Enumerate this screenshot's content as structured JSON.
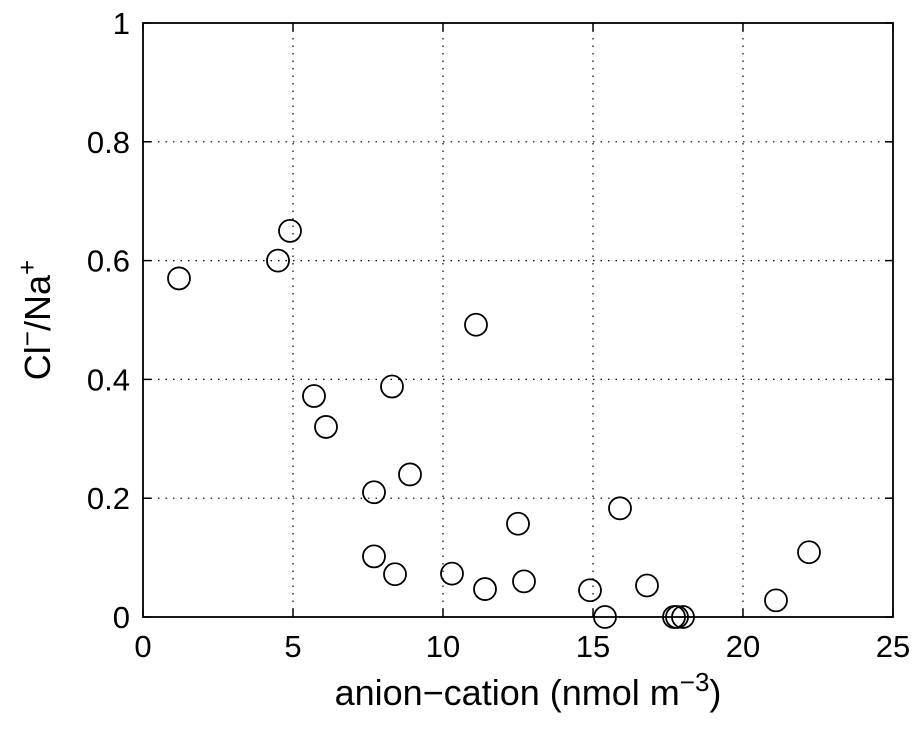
{
  "chart_data": {
    "type": "scatter",
    "title": "",
    "xlabel": "anion−cation (nmol m",
    "xlabel_sup": "−3",
    "xlabel_end": ")",
    "ylabel_main": "Cl",
    "ylabel_sup1": "−",
    "ylabel_mid": "/Na",
    "ylabel_sup2": "+",
    "xlim": [
      0,
      25
    ],
    "ylim": [
      0,
      1
    ],
    "xticks": [
      0,
      5,
      10,
      15,
      20,
      25
    ],
    "xtick_labels": [
      "0",
      "5",
      "10",
      "15",
      "20",
      "25"
    ],
    "yticks": [
      0,
      0.2,
      0.4,
      0.6,
      0.8,
      1
    ],
    "ytick_labels": [
      "0",
      "0.2",
      "0.4",
      "0.6",
      "0.8",
      "1"
    ],
    "grid": true,
    "marker": "open-circle",
    "color": "#000000",
    "series": [
      {
        "x": [
          1.2,
          4.5,
          4.9,
          5.7,
          6.1,
          7.7,
          7.7,
          8.3,
          8.4,
          8.9,
          10.3,
          11.1,
          11.4,
          12.5,
          12.7,
          14.9,
          15.4,
          15.9,
          16.8,
          17.7,
          17.8,
          18.0,
          21.1,
          22.2
        ],
        "y": [
          0.57,
          0.6,
          0.65,
          0.372,
          0.32,
          0.21,
          0.102,
          0.388,
          0.072,
          0.24,
          0.073,
          0.492,
          0.047,
          0.157,
          0.06,
          0.045,
          0.0,
          0.183,
          0.053,
          0.0,
          0.0,
          0.0,
          0.028,
          0.109
        ]
      }
    ]
  }
}
